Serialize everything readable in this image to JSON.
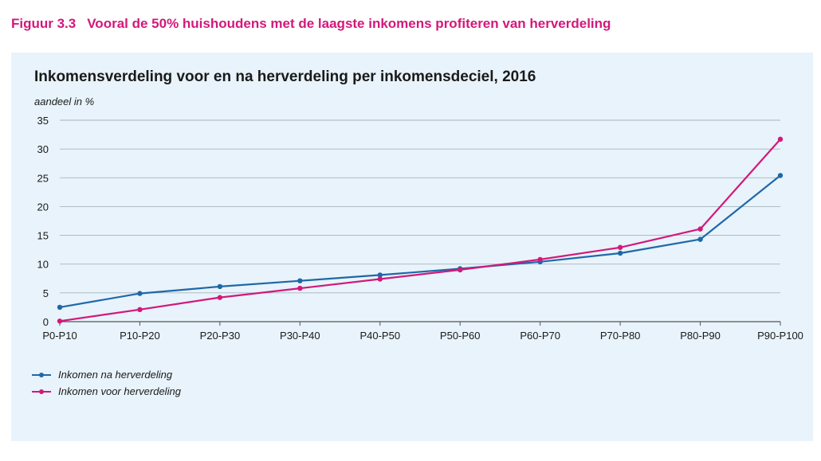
{
  "figure": {
    "number": "Figuur 3.3",
    "title": "Vooral de 50% huishoudens met de laagste inkomens profiteren van herverdeling"
  },
  "chart_data": {
    "type": "line",
    "title": "Inkomensverdeling voor en na herverdeling per inkomensdeciel, 2016",
    "ylabel": "aandeel in %",
    "xlabel": "",
    "ylim": [
      0,
      35
    ],
    "yticks": [
      0,
      5,
      10,
      15,
      20,
      25,
      30,
      35
    ],
    "grid": true,
    "legend_position": "bottom-left",
    "categories": [
      "P0-P10",
      "P10-P20",
      "P20-P30",
      "P30-P40",
      "P40-P50",
      "P50-P60",
      "P60-P70",
      "P70-P80",
      "P80-P90",
      "P90-P100"
    ],
    "series": [
      {
        "name": "Inkomen na herverdeling",
        "color": "#1f68a8",
        "values": [
          2.5,
          4.9,
          6.1,
          7.1,
          8.1,
          9.2,
          10.4,
          11.9,
          14.3,
          25.4
        ]
      },
      {
        "name": "Inkomen voor herverdeling",
        "color": "#d3187a",
        "values": [
          0.1,
          2.1,
          4.2,
          5.8,
          7.4,
          9.0,
          10.8,
          12.9,
          16.1,
          31.7
        ]
      }
    ]
  }
}
